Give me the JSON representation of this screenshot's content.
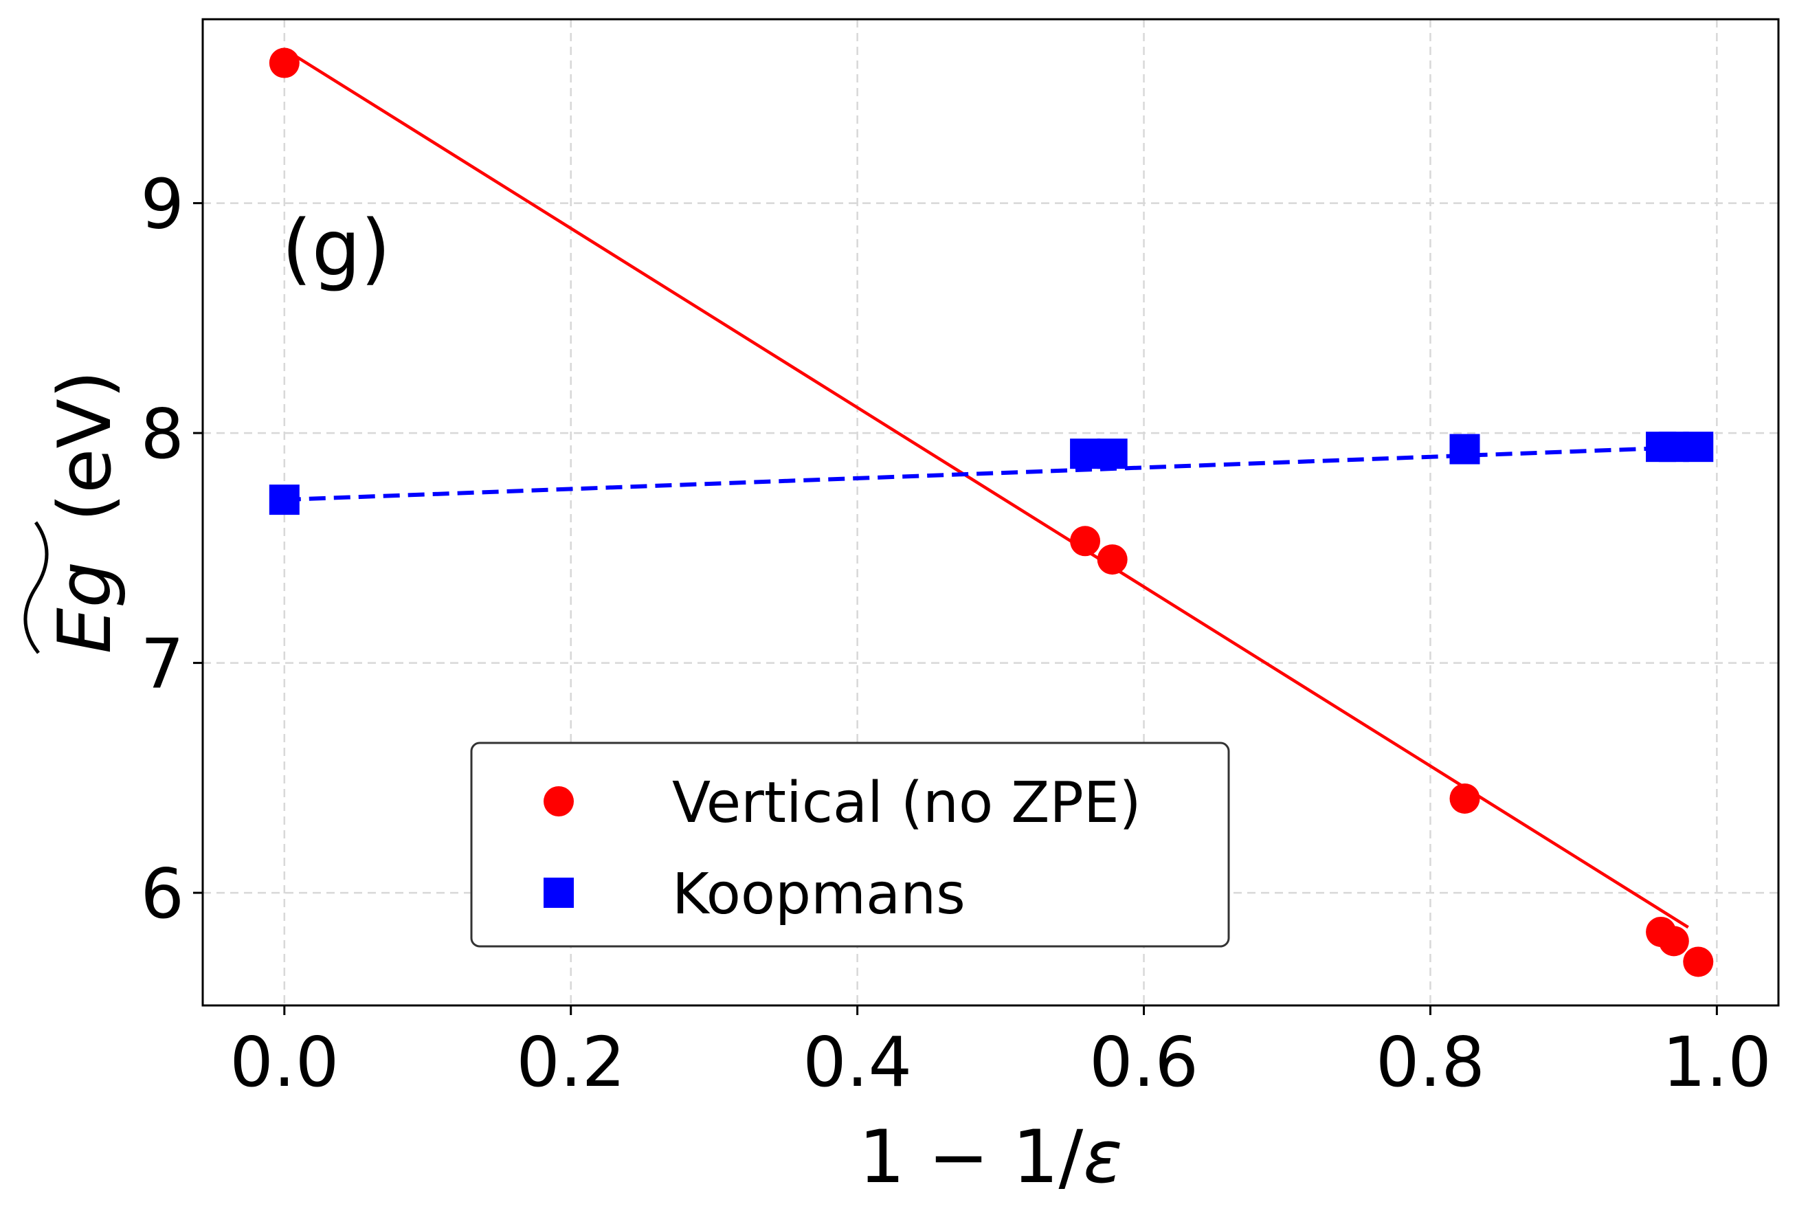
{
  "chart_data": {
    "type": "scatter",
    "panel_label": "(g)",
    "xlabel": "1 − 1/ε",
    "ylabel_main": "Eg",
    "ylabel_unit": "(eV)",
    "xlim": [
      -0.057,
      1.043
    ],
    "ylim": [
      5.51,
      9.8
    ],
    "x_ticks": [
      0.0,
      0.2,
      0.4,
      0.6,
      0.8,
      1.0
    ],
    "x_tick_labels": [
      "0.0",
      "0.2",
      "0.4",
      "0.6",
      "0.8",
      "1.0"
    ],
    "y_ticks": [
      6,
      7,
      8,
      9
    ],
    "y_tick_labels": [
      "6",
      "7",
      "8",
      "9"
    ],
    "grid": true,
    "legend_position": "lower-center",
    "series": [
      {
        "name": "Vertical (no ZPE)",
        "marker": "circle",
        "color": "#ff0000",
        "x": [
          0.0,
          0.559,
          0.578,
          0.824,
          0.961,
          0.97,
          0.987
        ],
        "y": [
          9.61,
          7.53,
          7.45,
          6.41,
          5.83,
          5.79,
          5.7
        ],
        "fit": {
          "x": [
            0.0,
            0.98
          ],
          "y": [
            9.67,
            5.85
          ],
          "style": "solid"
        }
      },
      {
        "name": "Koopmans",
        "marker": "square",
        "color": "#0000ff",
        "x": [
          0.0,
          0.559,
          0.578,
          0.824,
          0.961,
          0.97,
          0.987
        ],
        "y": [
          7.71,
          7.91,
          7.91,
          7.93,
          7.94,
          7.94,
          7.94
        ],
        "fit": {
          "x": [
            0.0,
            0.987
          ],
          "y": [
            7.71,
            7.94
          ],
          "style": "dashed"
        }
      }
    ]
  }
}
